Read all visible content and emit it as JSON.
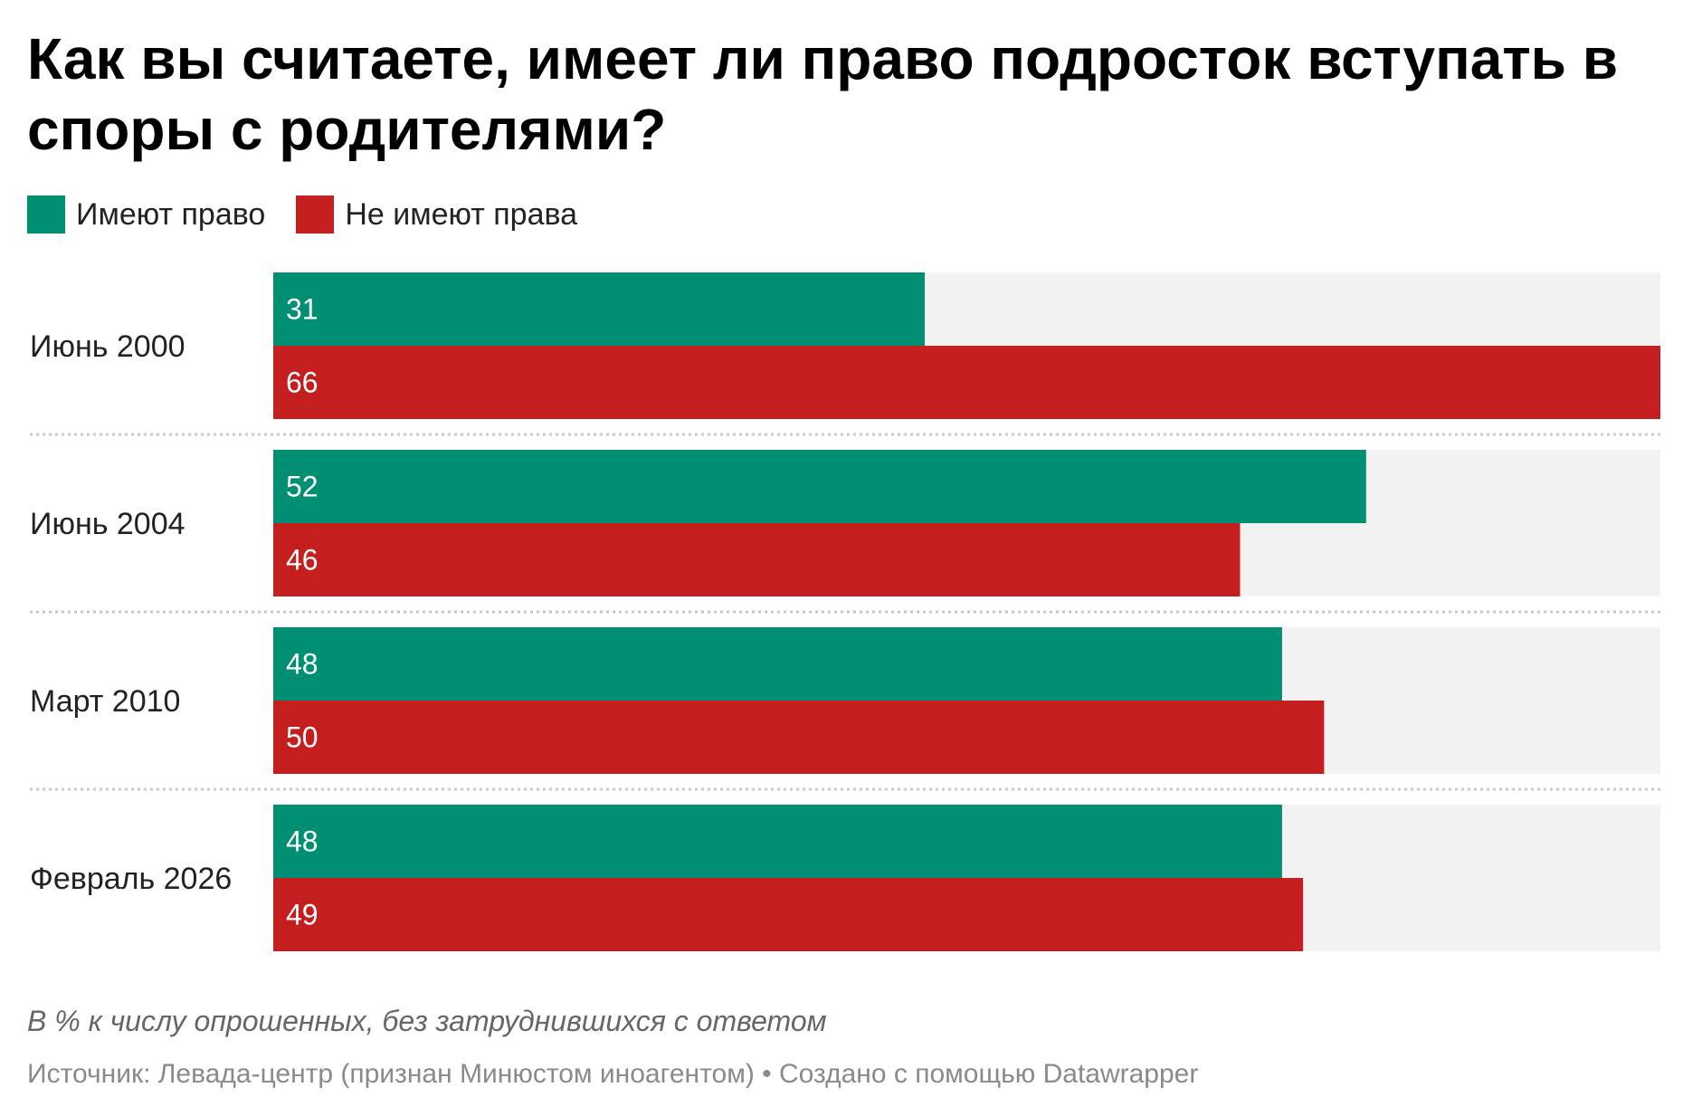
{
  "chart_data": {
    "type": "bar",
    "orientation": "horizontal",
    "title": "Как вы считаете, имеет ли право подросток вступать в споры с родителями?",
    "categories": [
      "Июнь 2000",
      "Июнь 2004",
      "Март 2010",
      "Февраль 2026"
    ],
    "series": [
      {
        "name": "Имеют право",
        "color": "#008f72",
        "values": [
          31,
          52,
          48,
          48
        ]
      },
      {
        "name": "Не имеют права",
        "color": "#c41e1e",
        "values": [
          66,
          46,
          50,
          49
        ]
      }
    ],
    "xlim": [
      0,
      66
    ],
    "background_track_color": "#f2f2f2",
    "legend": "top-left",
    "grid": false,
    "note": "В % к числу опрошенных, без затруднившихся с ответом",
    "source": "Источник: Левада-центр (признан Минюстом иноагентом) • Создано с помощью Datawrapper"
  }
}
